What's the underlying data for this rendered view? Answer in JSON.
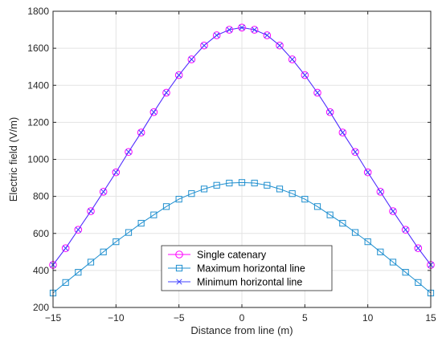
{
  "chart_data": {
    "type": "line",
    "xlabel": "Distance from line (m)",
    "ylabel": "Electric field (V/m)",
    "xlim": [
      -15,
      15
    ],
    "ylim": [
      200,
      1800
    ],
    "xticks": [
      -15,
      -10,
      -5,
      0,
      5,
      10,
      15
    ],
    "yticks": [
      200,
      400,
      600,
      800,
      1000,
      1200,
      1400,
      1600,
      1800
    ],
    "grid": true,
    "legend_position": "bottom-center",
    "x": [
      -15,
      -14,
      -13,
      -12,
      -11,
      -10,
      -9,
      -8,
      -7,
      -6,
      -5,
      -4,
      -3,
      -2,
      -1,
      0,
      1,
      2,
      3,
      4,
      5,
      6,
      7,
      8,
      9,
      10,
      11,
      12,
      13,
      14,
      15
    ],
    "series": [
      {
        "name": "Single catenary",
        "color": "#ff00ff",
        "marker": "circle",
        "values": [
          430,
          520,
          620,
          720,
          825,
          930,
          1040,
          1145,
          1255,
          1360,
          1455,
          1540,
          1615,
          1670,
          1700,
          1712,
          1700,
          1670,
          1615,
          1540,
          1455,
          1360,
          1255,
          1145,
          1040,
          930,
          825,
          720,
          620,
          520,
          430
        ]
      },
      {
        "name": "Maximum horizontal line",
        "color": "#1f8fcf",
        "marker": "square",
        "values": [
          278,
          335,
          390,
          445,
          500,
          555,
          605,
          655,
          700,
          745,
          785,
          815,
          840,
          860,
          872,
          875,
          872,
          860,
          840,
          815,
          785,
          745,
          700,
          655,
          605,
          555,
          500,
          445,
          390,
          335,
          278
        ]
      },
      {
        "name": "Minimum horizontal line",
        "color": "#4040ff",
        "marker": "x",
        "values": [
          430,
          520,
          620,
          720,
          825,
          930,
          1040,
          1145,
          1255,
          1360,
          1455,
          1540,
          1615,
          1670,
          1700,
          1712,
          1700,
          1670,
          1615,
          1540,
          1455,
          1360,
          1255,
          1145,
          1040,
          930,
          825,
          720,
          620,
          520,
          430
        ]
      }
    ]
  }
}
